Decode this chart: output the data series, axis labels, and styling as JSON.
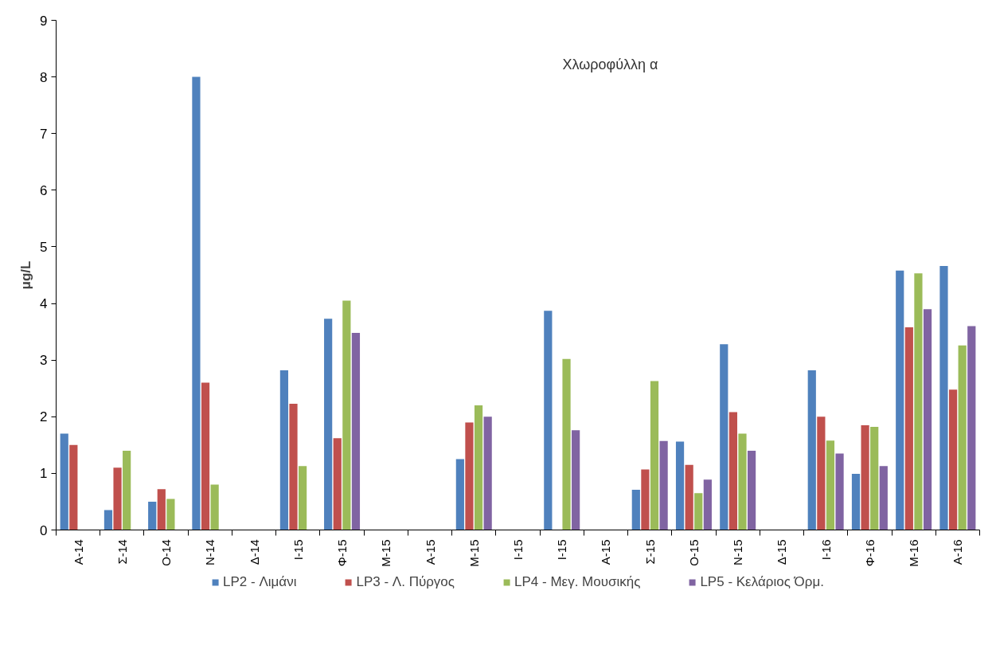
{
  "chart_data": {
    "type": "bar",
    "title": "Χλωροφύλλη α",
    "ylabel": "μg/L",
    "categories": [
      "Α-14",
      "Σ-14",
      "Ο-14",
      "Ν-14",
      "Δ-14",
      "Ι-15",
      "Φ-15",
      "Μ-15",
      "Α-15",
      "Μ-15",
      "Ι-15",
      "Ι-15",
      "Α-15",
      "Σ-15",
      "Ο-15",
      "Ν-15",
      "Δ-15",
      "Ι-16",
      "Φ-16",
      "Μ-16",
      "Α-16"
    ],
    "series": [
      {
        "name": "LP2 - Λιμάνι",
        "color": "#4f81bd",
        "values": [
          1.7,
          0.35,
          0.5,
          8.0,
          null,
          2.82,
          3.73,
          null,
          null,
          1.25,
          null,
          3.87,
          null,
          0.71,
          1.56,
          3.28,
          null,
          2.82,
          0.99,
          4.58,
          4.66
        ]
      },
      {
        "name": "LP3 - Λ. Πύργος",
        "color": "#c0504d",
        "values": [
          1.5,
          1.1,
          0.72,
          2.6,
          null,
          2.23,
          1.62,
          null,
          null,
          1.9,
          null,
          null,
          null,
          1.07,
          1.15,
          2.08,
          null,
          2.0,
          1.85,
          3.58,
          2.48
        ]
      },
      {
        "name": "LP4 - Μεγ. Μουσικής",
        "color": "#9bbb59",
        "values": [
          null,
          1.4,
          0.55,
          0.8,
          null,
          1.13,
          4.05,
          null,
          null,
          2.2,
          null,
          3.02,
          null,
          2.63,
          0.65,
          1.7,
          null,
          1.58,
          1.82,
          4.53,
          3.26
        ]
      },
      {
        "name": "LP5 - Κελάριος Όρμ.",
        "color": "#8064a2",
        "values": [
          null,
          null,
          null,
          null,
          null,
          null,
          3.48,
          null,
          null,
          2.0,
          null,
          1.76,
          null,
          1.57,
          0.89,
          1.4,
          null,
          1.35,
          1.13,
          3.9,
          3.6
        ]
      }
    ],
    "ylim": [
      0,
      9
    ],
    "yticks": [
      0,
      1,
      2,
      3,
      4,
      5,
      6,
      7,
      8,
      9
    ],
    "grid": false,
    "legend": "bottom"
  }
}
